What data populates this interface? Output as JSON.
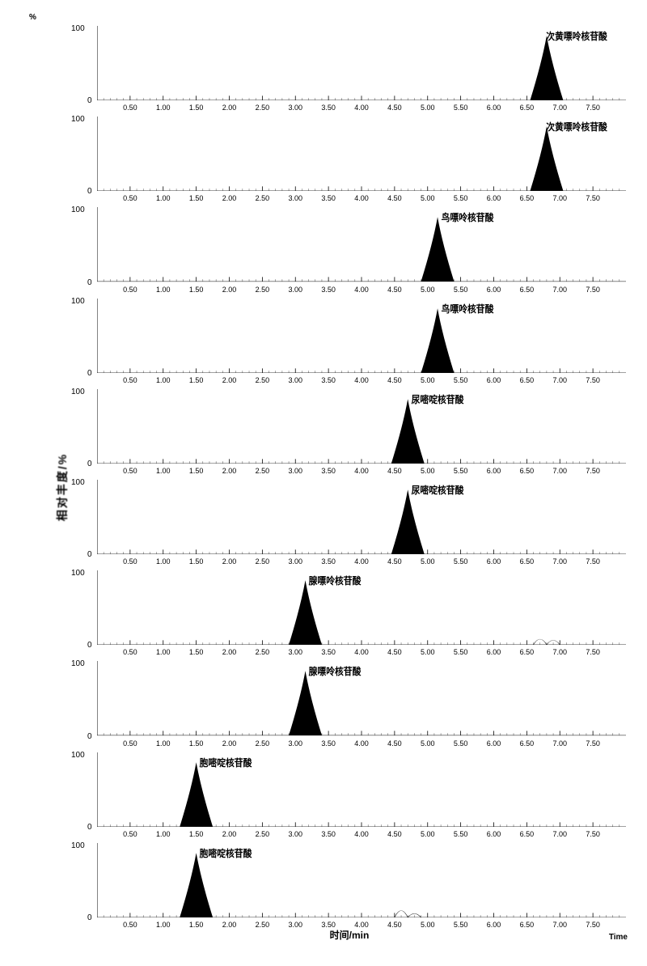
{
  "global": {
    "y_axis_label": "相对丰度/%",
    "x_axis_label": "时间/min",
    "time_corner": "Time",
    "pct_mark": "%",
    "background_color": "#ffffff",
    "axis_color": "#000000",
    "fill_color": "#000000",
    "tick_fontsize": 9,
    "label_fontsize": 12,
    "xmin": 0.0,
    "xmax": 8.0,
    "major_ticks": [
      0.5,
      1.0,
      1.5,
      2.0,
      2.5,
      3.0,
      3.5,
      4.0,
      4.5,
      5.0,
      5.5,
      6.0,
      6.5,
      7.0,
      7.5
    ],
    "ymax_label": "100",
    "ymin_label": "0",
    "peak_width": 0.25
  },
  "panels": [
    {
      "label": "次黄嘌呤核苷酸",
      "peak_rt": 6.8,
      "noise": []
    },
    {
      "label": "次黄嘌呤核苷酸",
      "peak_rt": 6.8,
      "noise": []
    },
    {
      "label": "鸟嘌呤核苷酸",
      "peak_rt": 5.15,
      "noise": []
    },
    {
      "label": "鸟嘌呤核苷酸",
      "peak_rt": 5.15,
      "noise": []
    },
    {
      "label": "尿嘧啶核苷酸",
      "peak_rt": 4.7,
      "noise": []
    },
    {
      "label": "尿嘧啶核苷酸",
      "peak_rt": 4.7,
      "noise": []
    },
    {
      "label": "腺嘌呤核苷酸",
      "peak_rt": 3.15,
      "noise": [
        [
          6.7,
          0.15
        ],
        [
          6.9,
          0.12
        ]
      ]
    },
    {
      "label": "腺嘌呤核苷酸",
      "peak_rt": 3.15,
      "noise": []
    },
    {
      "label": "胞嘧啶核苷酸",
      "peak_rt": 1.5,
      "noise": []
    },
    {
      "label": "胞嘧啶核苷酸",
      "peak_rt": 1.5,
      "noise": [
        [
          4.6,
          0.18
        ],
        [
          4.8,
          0.1
        ]
      ]
    }
  ]
}
